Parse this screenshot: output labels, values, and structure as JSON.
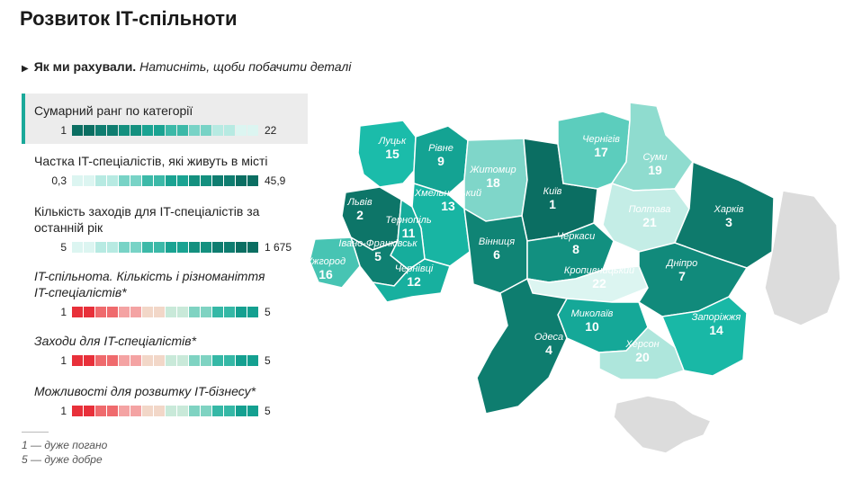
{
  "title": "Розвиток IT-спільноти",
  "method": {
    "bold": "Як ми рахували.",
    "italic": "Натисніть, щоби побачити деталі"
  },
  "legend": [
    {
      "label": "Сумарний ранг по категорії",
      "min": "1",
      "max": "22",
      "active": true,
      "italic": false,
      "colors": [
        "#0b6e62",
        "#0f7d70",
        "#14907f",
        "#1aa392",
        "#3cb9a8",
        "#78d3c6",
        "#b7eae2",
        "#dcf5f1"
      ]
    },
    {
      "label": "Частка IT-спеціалістів, які живуть в місті",
      "min": "0,3",
      "max": "45,9",
      "active": false,
      "italic": false,
      "colors": [
        "#dcf5f1",
        "#b7eae2",
        "#78d3c6",
        "#3cb9a8",
        "#1aa392",
        "#14907f",
        "#0f7d70",
        "#0b6e62"
      ]
    },
    {
      "label": "Кількість заходів для IT-спеціалістів за останній рік",
      "min": "5",
      "max": "1 675",
      "active": false,
      "italic": false,
      "colors": [
        "#dcf5f1",
        "#b7eae2",
        "#78d3c6",
        "#3cb9a8",
        "#1aa392",
        "#14907f",
        "#0f7d70",
        "#0b6e62"
      ]
    },
    {
      "label": "IT-спільнота. Кількість і різноманіття IT-спеціалістів*",
      "min": "1",
      "max": "5",
      "active": false,
      "italic": true,
      "colors": [
        "#e8303a",
        "#ef6a6d",
        "#f4a3a3",
        "#f2d7c8",
        "#c9e9d9",
        "#7fd3c2",
        "#35b8a6",
        "#14a090"
      ]
    },
    {
      "label": "Заходи для IT-спеціалістів*",
      "min": "1",
      "max": "5",
      "active": false,
      "italic": true,
      "colors": [
        "#e8303a",
        "#ef6a6d",
        "#f4a3a3",
        "#f2d7c8",
        "#c9e9d9",
        "#7fd3c2",
        "#35b8a6",
        "#14a090"
      ]
    },
    {
      "label": "Можливості для розвитку IT-бізнесу*",
      "min": "1",
      "max": "5",
      "active": false,
      "italic": true,
      "colors": [
        "#e8303a",
        "#ef6a6d",
        "#f4a3a3",
        "#f2d7c8",
        "#c9e9d9",
        "#7fd3c2",
        "#35b8a6",
        "#14a090"
      ]
    }
  ],
  "footnote": [
    "1 — дуже погано",
    "5 — дуже добре"
  ],
  "regions": [
    {
      "name": "Луцьк",
      "rank": "15",
      "color": "#1bbcaa"
    },
    {
      "name": "Рівне",
      "rank": "9",
      "color": "#14a393"
    },
    {
      "name": "Житомир",
      "rank": "18",
      "color": "#7fd6c9"
    },
    {
      "name": "Київ",
      "rank": "1",
      "color": "#0b6e62"
    },
    {
      "name": "Чернігів",
      "rank": "17",
      "color": "#5ccdbd"
    },
    {
      "name": "Суми",
      "rank": "19",
      "color": "#8fdccf"
    },
    {
      "name": "Львів",
      "rank": "2",
      "color": "#0d7568"
    },
    {
      "name": "Хмельницький",
      "rank": "13",
      "color": "#18b5a3"
    },
    {
      "name": "Тернопіль",
      "rank": "11",
      "color": "#16ad9c"
    },
    {
      "name": "Полтава",
      "rank": "21",
      "color": "#c4ede6"
    },
    {
      "name": "Харків",
      "rank": "3",
      "color": "#0e7a6c"
    },
    {
      "name": "Івано-Франківськ",
      "rank": "5",
      "color": "#0f8072"
    },
    {
      "name": "Вінниця",
      "rank": "6",
      "color": "#108475"
    },
    {
      "name": "Черкаси",
      "rank": "8",
      "color": "#129080"
    },
    {
      "name": "Ужгород",
      "rank": "16",
      "color": "#47c4b3"
    },
    {
      "name": "Чернівці",
      "rank": "12",
      "color": "#17b09f"
    },
    {
      "name": "Кропивницький",
      "rank": "22",
      "color": "#dcf5f1"
    },
    {
      "name": "Дніпро",
      "rank": "7",
      "color": "#118a7b"
    },
    {
      "name": "Миколаїв",
      "rank": "10",
      "color": "#15a898"
    },
    {
      "name": "Одеса",
      "rank": "4",
      "color": "#0e7d6f"
    },
    {
      "name": "Запоріжжя",
      "rank": "14",
      "color": "#19b8a6"
    },
    {
      "name": "Херсон",
      "rank": "20",
      "color": "#aee6dc"
    }
  ],
  "colors": {
    "gray_land": "#dcdcdc",
    "accent": "#1aa99a"
  }
}
